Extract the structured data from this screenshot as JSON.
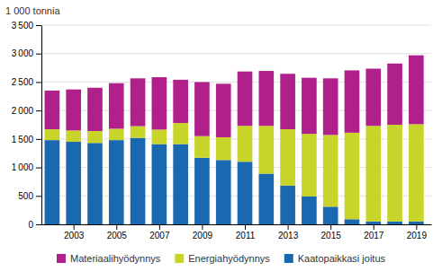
{
  "chart_data": {
    "type": "bar",
    "stacked": true,
    "ylabel": "1 000 tonnia",
    "x": [
      2002,
      2003,
      2004,
      2005,
      2006,
      2007,
      2008,
      2009,
      2010,
      2011,
      2012,
      2013,
      2014,
      2015,
      2016,
      2017,
      2018,
      2019
    ],
    "xlim": [
      2001.5,
      2019.7
    ],
    "xticks": [
      2003,
      2005,
      2007,
      2009,
      2011,
      2013,
      2015,
      2017,
      2019
    ],
    "ylim": [
      0,
      3500
    ],
    "yticks": [
      0,
      500,
      {
        "value": 1000,
        "label": "1 000"
      },
      {
        "value": 1500,
        "label": "1 500"
      },
      {
        "value": 2000,
        "label": "2 000"
      },
      {
        "value": 2500,
        "label": "2 500"
      },
      {
        "value": 3000,
        "label": "3 000"
      },
      {
        "value": 3500,
        "label": "3 500"
      }
    ],
    "grid": true,
    "legend": "bottom",
    "series": [
      {
        "name": "Kaatopaikkasi joitus",
        "color": "#1a69b0",
        "values": [
          1480,
          1450,
          1430,
          1480,
          1520,
          1410,
          1410,
          1170,
          1130,
          1100,
          890,
          680,
          490,
          310,
          90,
          50,
          50,
          50
        ]
      },
      {
        "name": "Energiahyödynnys",
        "color": "#c8d42a",
        "values": [
          190,
          200,
          210,
          200,
          205,
          255,
          370,
          380,
          400,
          630,
          840,
          990,
          1100,
          1260,
          1520,
          1680,
          1700,
          1710
        ]
      },
      {
        "name": "Materiaalihyödynnys",
        "color": "#b0208a",
        "values": [
          680,
          720,
          760,
          800,
          840,
          920,
          760,
          950,
          940,
          955,
          965,
          975,
          985,
          995,
          1095,
          1005,
          1075,
          1210
        ]
      }
    ]
  }
}
